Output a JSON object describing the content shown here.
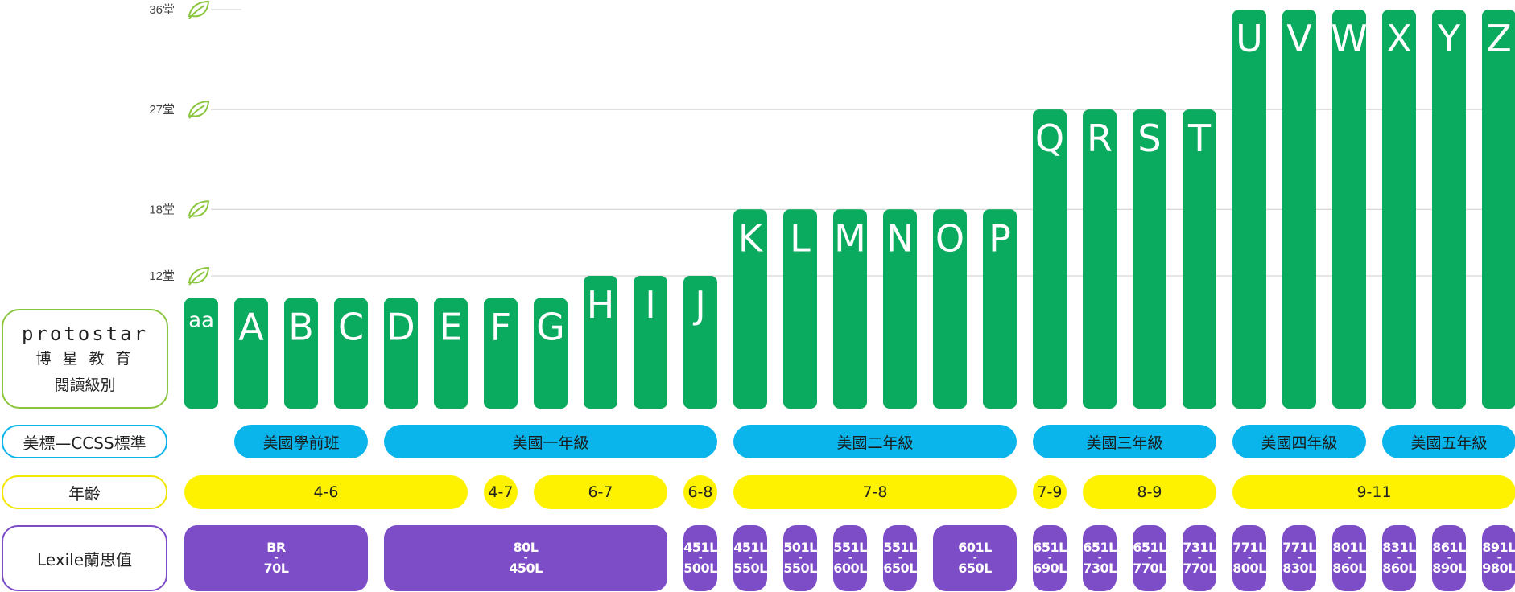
{
  "brand": {
    "name": "protostar",
    "chinese": "博 星 教 育",
    "subtitle": "閱讀級別"
  },
  "colors": {
    "grid": "#cccccc",
    "leaf": "#8cc63f",
    "ccss": "#0ab5ec",
    "age": "#fff200",
    "lexile": "#7d4cc7",
    "labelBorderCcss": "#0ab5ec",
    "labelBorderAge": "#f2e600",
    "labelBorderLexile": "#7d4cc7",
    "labelBorderBrand": "#8cc63f"
  },
  "row_labels": {
    "ccss": "美標—CCSS標準",
    "age": "年齡",
    "lexile": "Lexile蘭思值"
  },
  "chart_data": {
    "type": "bar",
    "categories": [
      "aa",
      "A",
      "B",
      "C",
      "D",
      "E",
      "F",
      "G",
      "H",
      "I",
      "J",
      "K",
      "L",
      "M",
      "N",
      "O",
      "P",
      "Q",
      "R",
      "S",
      "T",
      "U",
      "V",
      "W",
      "X",
      "Y",
      "Z"
    ],
    "values": [
      10,
      10,
      10,
      10,
      10,
      10,
      10,
      10,
      12,
      12,
      12,
      18,
      18,
      18,
      18,
      18,
      18,
      27,
      27,
      27,
      27,
      36,
      36,
      36,
      36,
      36,
      36
    ],
    "ylabel_ticks": [
      "12堂",
      "18堂",
      "27堂",
      "36堂"
    ],
    "ticks": [
      12,
      18,
      27,
      36
    ]
  },
  "ccss": [
    {
      "label": "美國學前班",
      "from": 1,
      "to": 3
    },
    {
      "label": "美國一年級",
      "from": 4,
      "to": 10
    },
    {
      "label": "美國二年級",
      "from": 11,
      "to": 16
    },
    {
      "label": "美國三年級",
      "from": 17,
      "to": 20
    },
    {
      "label": "美國四年級",
      "from": 21,
      "to": 23
    },
    {
      "label": "美國五年級",
      "from": 24,
      "to": 26
    }
  ],
  "ages": [
    {
      "label": "4-6",
      "from": 0,
      "to": 5
    },
    {
      "label": "4-7",
      "from": 6,
      "to": 6
    },
    {
      "label": "6-7",
      "from": 7,
      "to": 9
    },
    {
      "label": "6-8",
      "from": 10,
      "to": 10
    },
    {
      "label": "7-8",
      "from": 11,
      "to": 16
    },
    {
      "label": "7-9",
      "from": 17,
      "to": 17
    },
    {
      "label": "8-9",
      "from": 18,
      "to": 20
    },
    {
      "label": "9-11",
      "from": 21,
      "to": 26
    }
  ],
  "lexile": [
    {
      "top": "BR",
      "bottom": "70L",
      "from": 0,
      "to": 3
    },
    {
      "top": "80L",
      "bottom": "450L",
      "from": 4,
      "to": 9
    },
    {
      "top": "451L",
      "bottom": "500L",
      "from": 10,
      "to": 10
    },
    {
      "top": "451L",
      "bottom": "550L",
      "from": 11,
      "to": 11
    },
    {
      "top": "501L",
      "bottom": "550L",
      "from": 12,
      "to": 12
    },
    {
      "top": "551L",
      "bottom": "600L",
      "from": 13,
      "to": 13
    },
    {
      "top": "551L",
      "bottom": "650L",
      "from": 14,
      "to": 14
    },
    {
      "top": "601L",
      "bottom": "650L",
      "from": 15,
      "to": 16
    },
    {
      "top": "651L",
      "bottom": "690L",
      "from": 17,
      "to": 17
    },
    {
      "top": "651L",
      "bottom": "730L",
      "from": 18,
      "to": 18
    },
    {
      "top": "651L",
      "bottom": "770L",
      "from": 19,
      "to": 19
    },
    {
      "top": "731L",
      "bottom": "770L",
      "from": 20,
      "to": 20
    },
    {
      "top": "771L",
      "bottom": "800L",
      "from": 21,
      "to": 21
    },
    {
      "top": "771L",
      "bottom": "830L",
      "from": 22,
      "to": 22
    },
    {
      "top": "801L",
      "bottom": "860L",
      "from": 23,
      "to": 23
    },
    {
      "top": "831L",
      "bottom": "860L",
      "from": 24,
      "to": 24
    },
    {
      "top": "861L",
      "bottom": "890L",
      "from": 25,
      "to": 25
    },
    {
      "top": "891L",
      "bottom": "980L",
      "from": 26,
      "to": 26
    }
  ]
}
